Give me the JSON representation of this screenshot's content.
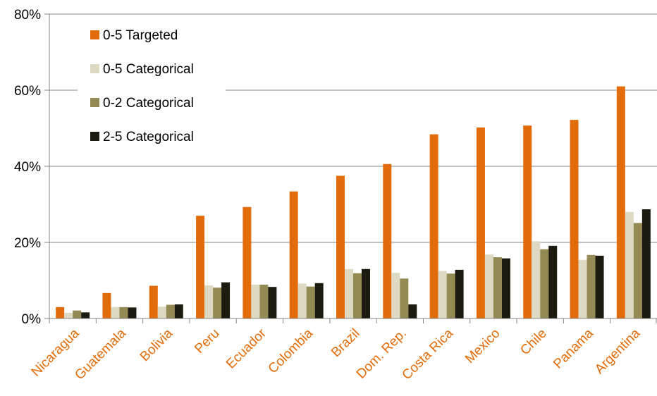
{
  "chart_data": {
    "type": "bar",
    "title": "",
    "xlabel": "",
    "ylabel": "",
    "categories": [
      "Nicaragua",
      "Guatemala",
      "Bolivia",
      "Peru",
      "Ecuador",
      "Colombia",
      "Brazil",
      "Dom. Rep.",
      "Costa Rica",
      "Mexico",
      "Chile",
      "Panama",
      "Argentina"
    ],
    "series": [
      {
        "name": "0-5 Targeted",
        "color": "#E36C0A",
        "values": [
          3.0,
          6.7,
          8.6,
          27.0,
          29.3,
          33.4,
          37.5,
          40.6,
          48.4,
          50.2,
          50.7,
          52.2,
          61.0
        ]
      },
      {
        "name": "0-5 Categorical",
        "color": "#DDD9C3",
        "values": [
          1.5,
          3.0,
          3.1,
          8.7,
          8.9,
          9.2,
          13.0,
          12.0,
          12.5,
          16.8,
          20.3,
          15.4,
          28.0
        ]
      },
      {
        "name": "0-2 Categorical",
        "color": "#948A54",
        "values": [
          2.1,
          3.0,
          3.6,
          8.1,
          8.9,
          8.4,
          11.9,
          10.5,
          11.8,
          16.1,
          18.2,
          16.7,
          25.1
        ]
      },
      {
        "name": "2-5 Categorical",
        "color": "#1D1B10",
        "values": [
          1.6,
          2.9,
          3.7,
          9.5,
          8.3,
          9.3,
          13.0,
          3.7,
          12.8,
          15.8,
          19.1,
          16.5,
          28.7
        ]
      }
    ],
    "ylim": [
      0,
      80
    ],
    "yticks": [
      0,
      20,
      40,
      60,
      80
    ],
    "ytick_labels": [
      "0%",
      "20%",
      "40%",
      "60%",
      "80%"
    ],
    "grid": true,
    "legend_position": "top-left",
    "category_label_color": "#E36C0A",
    "axis_color": "#868686"
  }
}
